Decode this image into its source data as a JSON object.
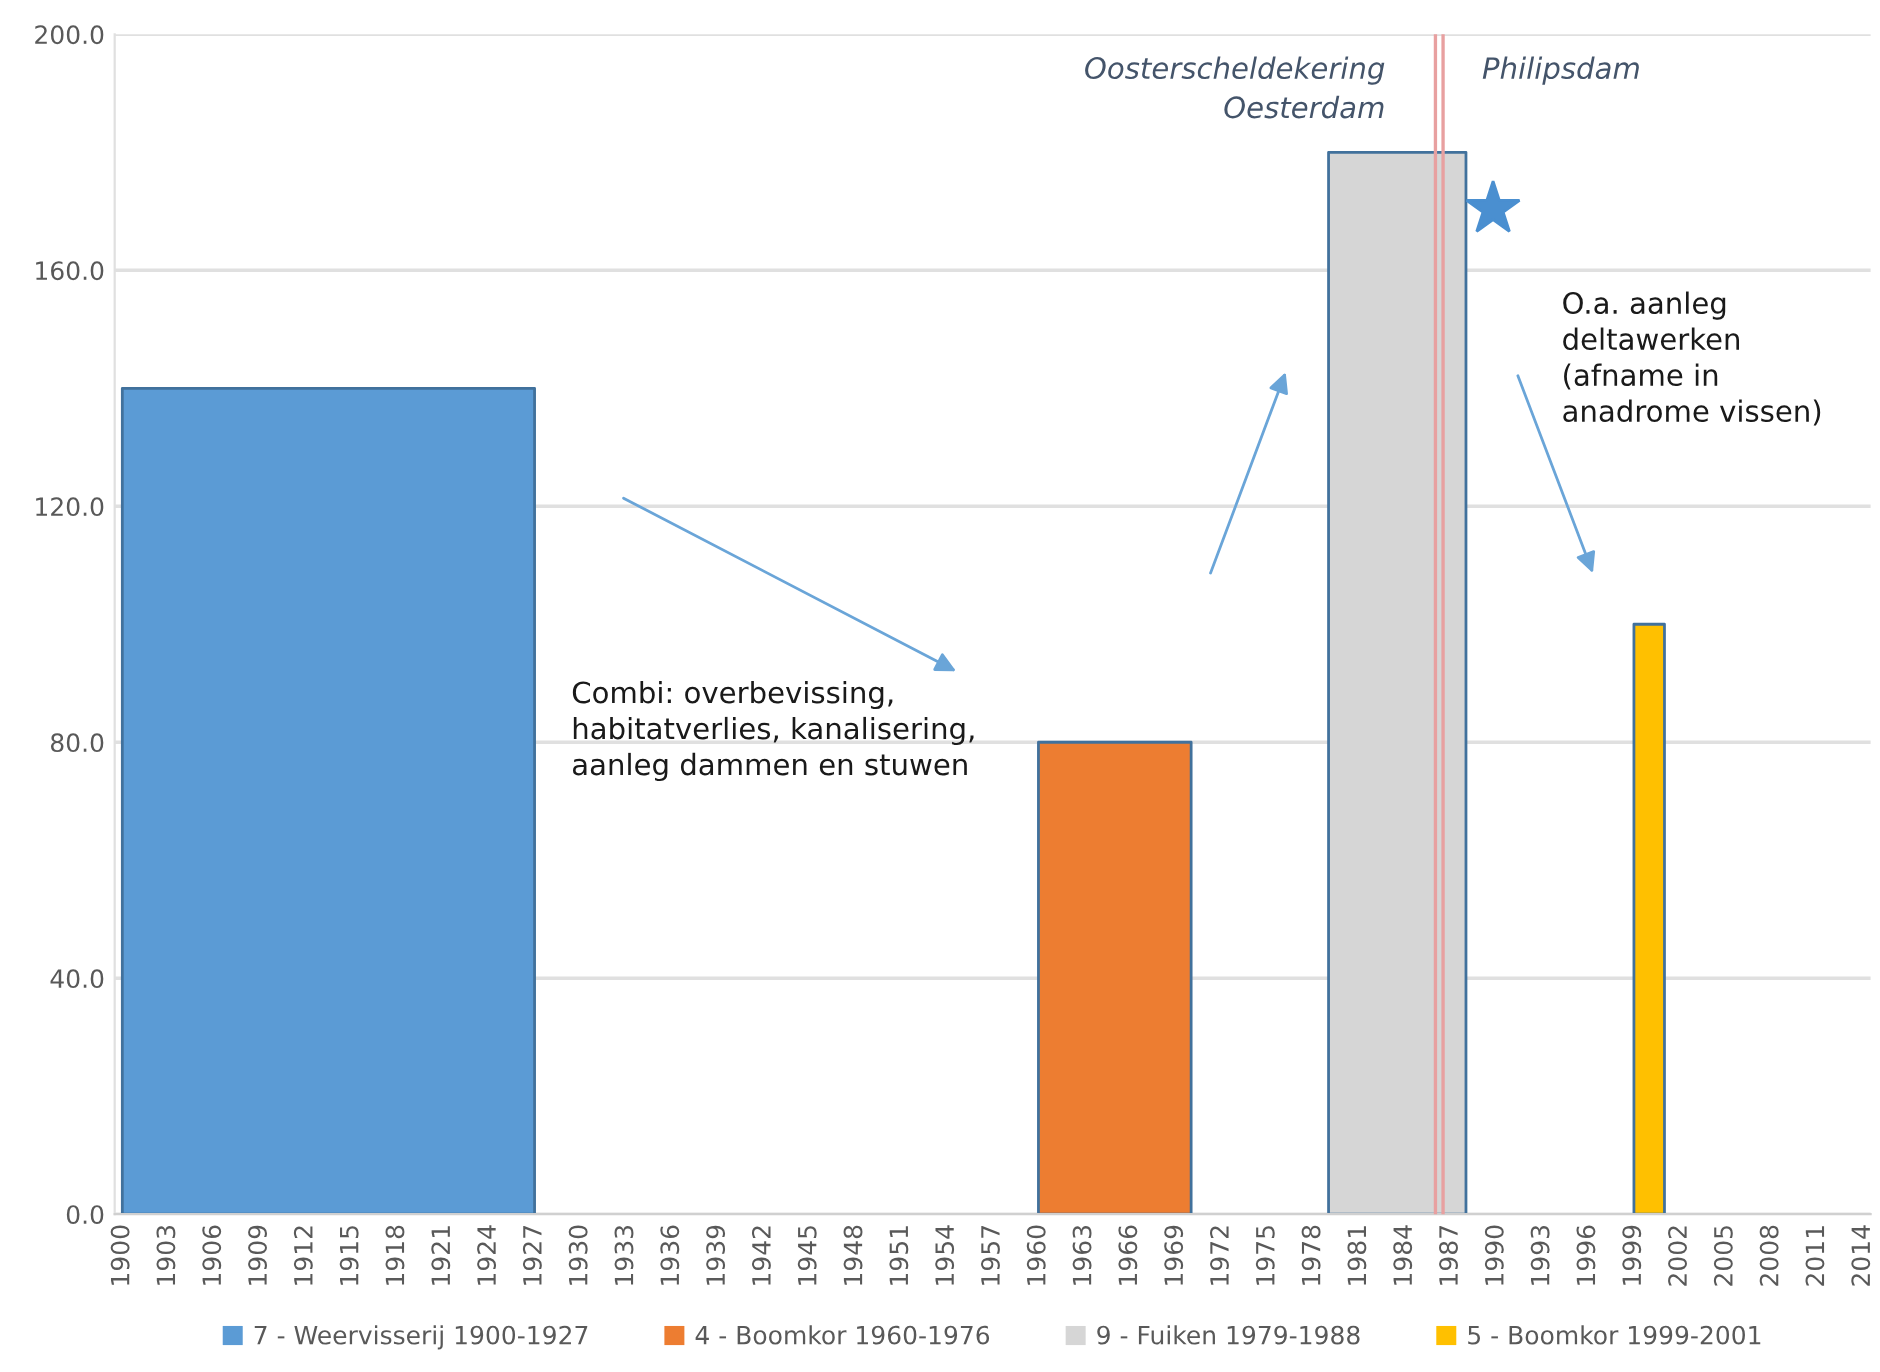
{
  "chart_data": {
    "type": "area",
    "series": [
      {
        "name": "7 - Weervisserij 1900-1927",
        "color": "#5b9bd5",
        "x": [
          1900,
          1927
        ],
        "values": [
          140,
          140
        ]
      },
      {
        "name": "4 - Boomkor 1960-1976",
        "color": "#ed7d31",
        "x": [
          1960,
          1970
        ],
        "values": [
          80,
          80
        ]
      },
      {
        "name": "9 - Fuiken 1979-1988",
        "color": "#d6d6d6",
        "x": [
          1979,
          1988
        ],
        "values": [
          180,
          180
        ]
      },
      {
        "name": "5 - Boomkor 1999-2001",
        "color": "#ffc000",
        "x": [
          1999,
          2001
        ],
        "values": [
          100,
          100
        ]
      }
    ],
    "xlim": [
      1899.5,
      2014.5
    ],
    "xticks": [
      1900,
      1903,
      1906,
      1909,
      1912,
      1915,
      1918,
      1921,
      1924,
      1927,
      1930,
      1933,
      1936,
      1939,
      1942,
      1945,
      1948,
      1951,
      1954,
      1957,
      1960,
      1963,
      1966,
      1969,
      1972,
      1975,
      1978,
      1981,
      1984,
      1987,
      1990,
      1993,
      1996,
      1999,
      2002,
      2005,
      2008,
      2011,
      2014
    ],
    "ylim": [
      0,
      200
    ],
    "yticks": [
      {
        "value": 0,
        "label": "0.0"
      },
      {
        "value": 40,
        "label": "40.0"
      },
      {
        "value": 80,
        "label": "80.0"
      },
      {
        "value": 120,
        "label": "120.0"
      },
      {
        "value": 160,
        "label": "160.0"
      },
      {
        "value": 200,
        "label": "200.0"
      }
    ],
    "ref_lines": [
      {
        "axis": "x",
        "value": 1986,
        "label": "Oosterscheldekering\nOesterdam",
        "color": "#e8a0a0"
      },
      {
        "axis": "x",
        "value": 1986.5,
        "label": "Philipsdam",
        "color": "#e8a0a0"
      }
    ],
    "annotations": [
      "Combi: overbevissing,\nhabitatverlies, kanalisering,\naanleg dammen en stuwen",
      "O.a. aanleg\ndeltawerken\n(afname in\nanadrome vissen)"
    ],
    "grid": "y",
    "legend": "bottom"
  }
}
